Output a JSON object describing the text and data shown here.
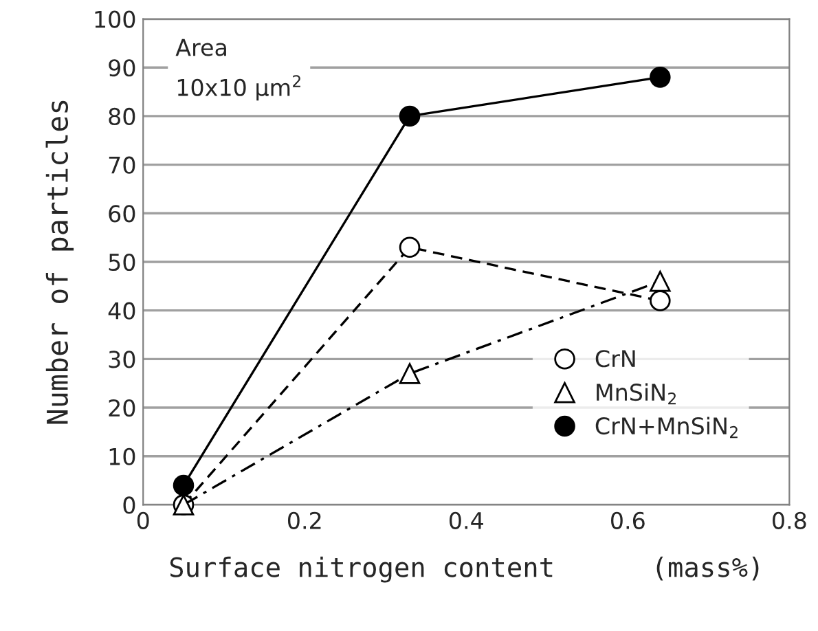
{
  "chart_data": {
    "type": "line",
    "xlabel": "Surface nitrogen content      (mass%)",
    "ylabel": "Number of particles",
    "x": [
      0.05,
      0.33,
      0.64
    ],
    "series": [
      {
        "name": "CrN",
        "color": "#000000",
        "values": [
          0,
          53,
          42
        ],
        "marker": "circle",
        "line_style": "dashed"
      },
      {
        "name": "MnSiN$_{2}$",
        "color": "#000000",
        "values": [
          0,
          27,
          46
        ],
        "marker": "triangle",
        "line_style": "dashdot"
      },
      {
        "name": "CrN+MnSiN$_{2}$",
        "color": "#000000",
        "values": [
          4,
          80,
          88
        ],
        "marker": "circle",
        "line_style": "solid"
      }
    ],
    "xlim": [
      0,
      0.8
    ],
    "xticks": [
      {
        "value": 0,
        "label": "0"
      },
      0.2,
      0.4,
      0.6,
      0.8
    ],
    "ylim": [
      0,
      100
    ],
    "yticks": [
      0,
      10,
      20,
      30,
      40,
      50,
      60,
      70,
      80,
      90,
      100
    ],
    "grid": "y",
    "legend": "bottom right",
    "annotations": [
      "Area\n10x10 μm$^{2}$"
    ]
  }
}
